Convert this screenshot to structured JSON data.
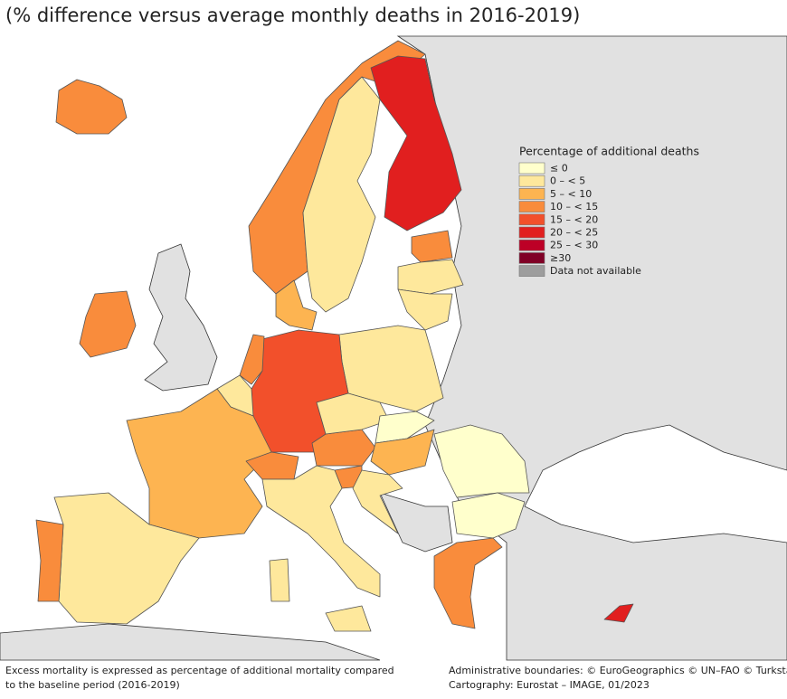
{
  "subtitle": "(% difference versus average monthly deaths in 2016-2019)",
  "legend": {
    "title": "Percentage of additional deaths",
    "items": [
      {
        "label": "≤ 0",
        "color": "#ffffcc"
      },
      {
        "label": "0 – < 5",
        "color": "#fee89c"
      },
      {
        "label": "5 – < 10",
        "color": "#fdb451"
      },
      {
        "label": "10 – < 15",
        "color": "#f98c3c"
      },
      {
        "label": "15 – < 20",
        "color": "#f2502b"
      },
      {
        "label": "20 – < 25",
        "color": "#e11f1f"
      },
      {
        "label": "25 – < 30",
        "color": "#bd0026"
      },
      {
        "label": "≥30",
        "color": "#800026"
      },
      {
        "label": "Data not available",
        "color": "#9d9d9d"
      }
    ]
  },
  "footer": {
    "left": [
      "Excess mortality is expressed as percentage of additional mortality compared",
      "to the baseline period (2016-2019)"
    ],
    "right": [
      "Administrative boundaries: © EuroGeographics © UN–FAO © Turkstat",
      "Cartography: Eurostat – IMAGE, 01/2023"
    ]
  }
}
